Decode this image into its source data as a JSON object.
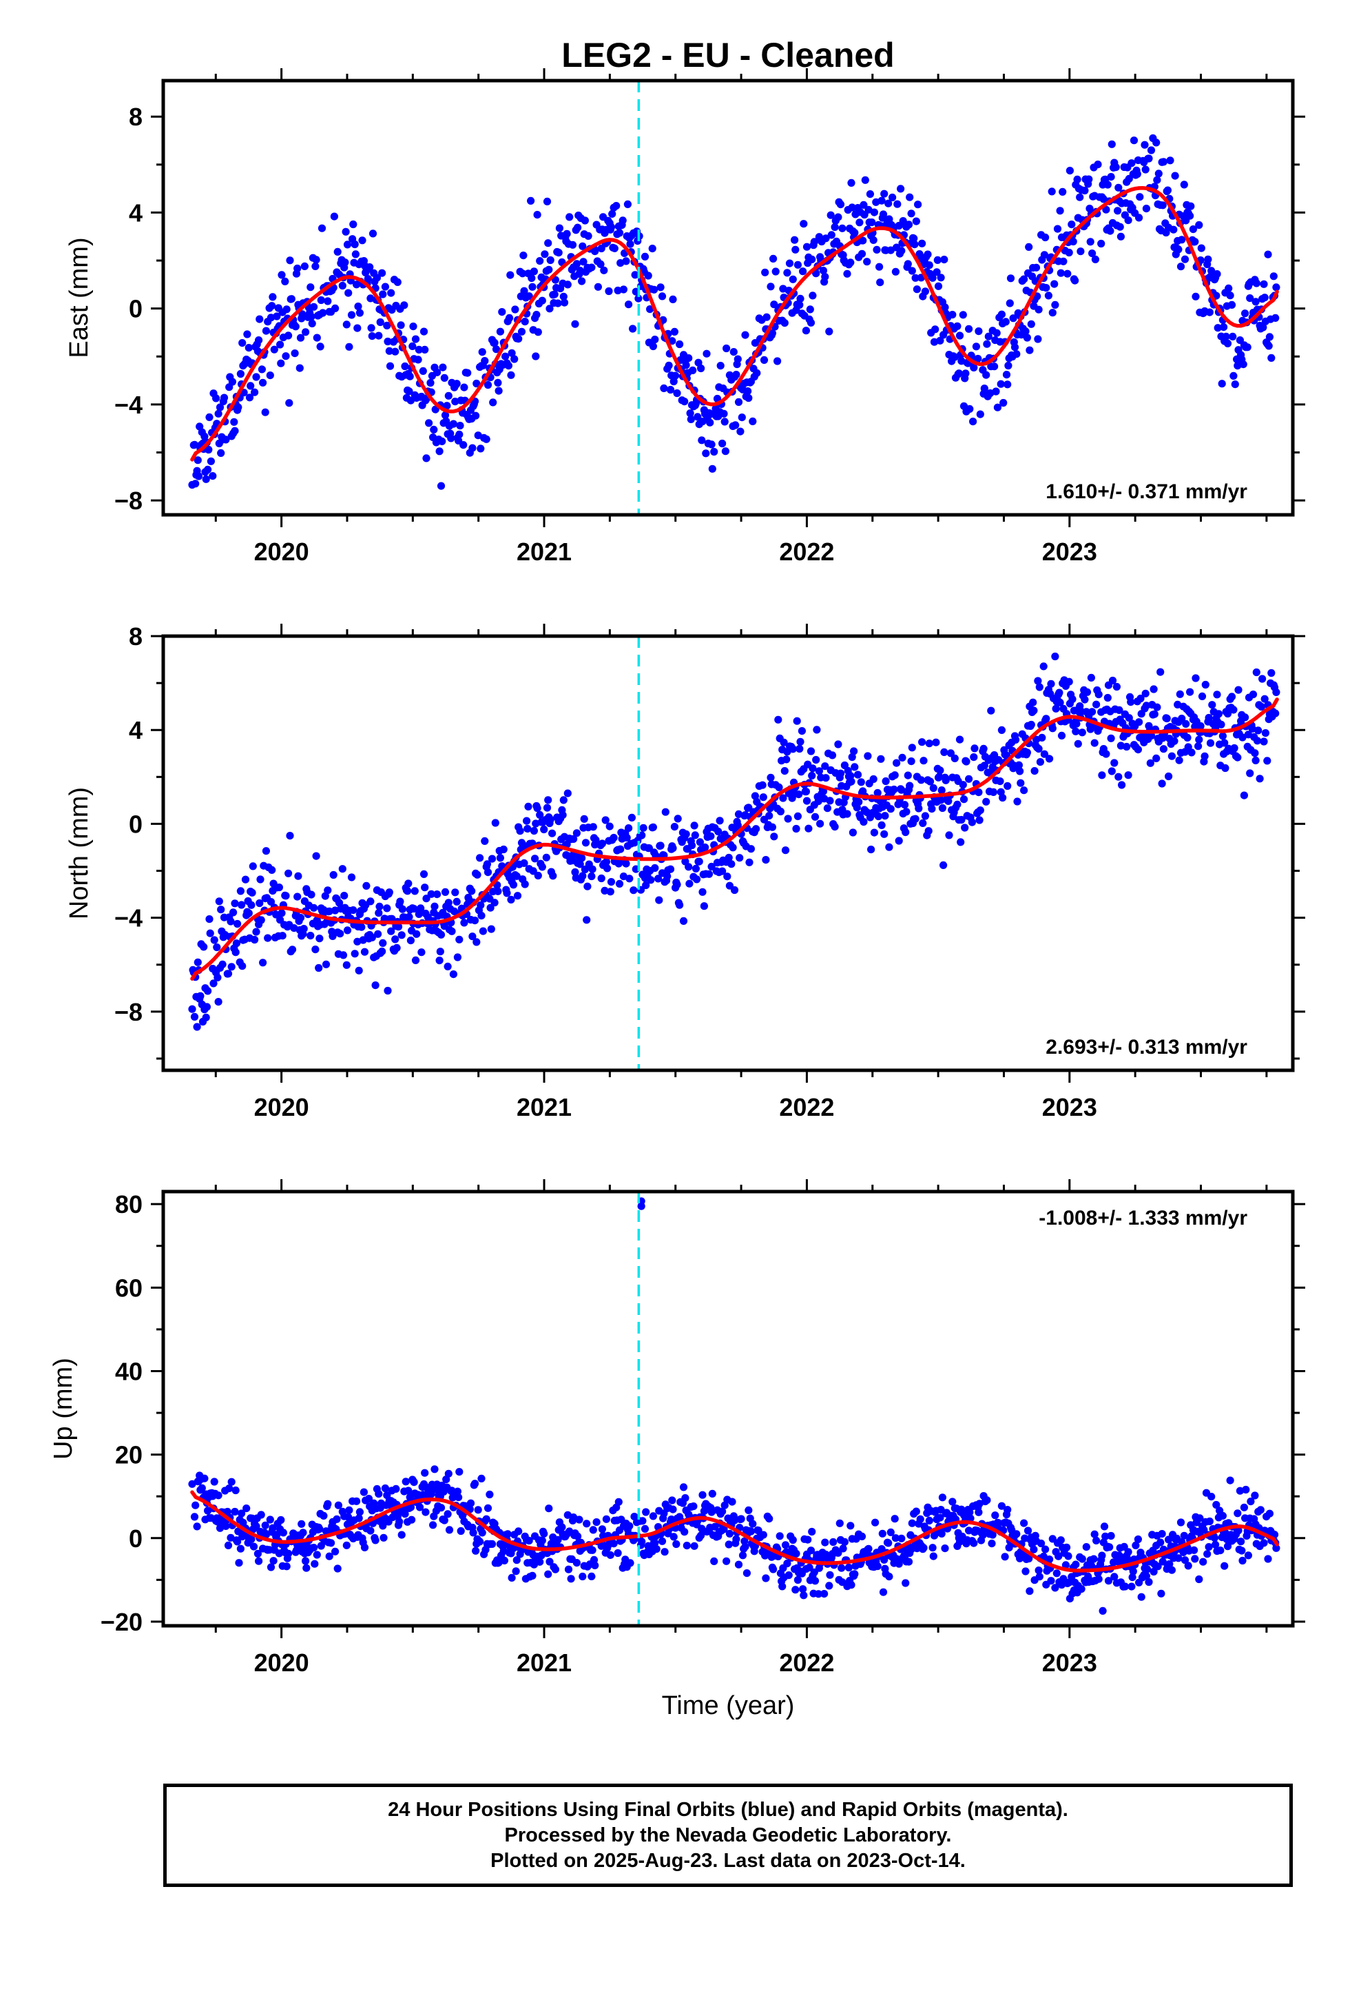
{
  "title": "LEG2  - EU - Cleaned",
  "colors": {
    "points": "#0000ff",
    "fit": "#ff0000",
    "event_line": "#00e5ee"
  },
  "x_ticks": [
    "2020",
    "2021",
    "2022",
    "2023"
  ],
  "xlabel_bottom": "Time (year)",
  "event_line_year": 2021.36,
  "footer": {
    "line1": "24 Hour Positions Using Final Orbits (blue) and Rapid Orbits (magenta).",
    "line2": "Processed by the Nevada Geodetic Laboratory.",
    "line3": "Plotted on 2025-Aug-23. Last data on 2023-Oct-14."
  },
  "chart_data": [
    {
      "type": "scatter",
      "name": "east",
      "ylabel": "East (mm)",
      "xlim": [
        2019.55,
        2023.85
      ],
      "ylim": [
        -8.6,
        9.5
      ],
      "yticks": [
        8,
        4,
        0,
        -4,
        -8
      ],
      "ytick_labels": [
        "8",
        "4",
        "0",
        "−4",
        "−8"
      ],
      "rate_text": "1.610+/- 0.371 mm/yr",
      "rate_position": "bottom-right",
      "trend": {
        "t0": 2019.66,
        "end": 2023.79,
        "y0": -6.2,
        "rate": 1.61
      },
      "fit": {
        "x": [
          2019.66,
          2019.75,
          2019.85,
          2019.95,
          2020.05,
          2020.15,
          2020.25,
          2020.3,
          2020.4,
          2020.5,
          2020.6,
          2020.65,
          2020.75,
          2020.85,
          2020.95,
          2021.05,
          2021.15,
          2021.25,
          2021.3,
          2021.36,
          2021.4,
          2021.5,
          2021.6,
          2021.65,
          2021.75,
          2021.85,
          2021.95,
          2022.05,
          2022.15,
          2022.25,
          2022.3,
          2022.4,
          2022.5,
          2022.6,
          2022.65,
          2022.75,
          2022.85,
          2022.95,
          2023.05,
          2023.15,
          2023.25,
          2023.3,
          2023.4,
          2023.5,
          2023.6,
          2023.65,
          2023.79
        ],
        "y": [
          -6.3,
          -5.4,
          -3.2,
          -1.4,
          -0.2,
          0.7,
          1.5,
          1.5,
          0.0,
          -2.6,
          -4.4,
          -4.6,
          -3.6,
          -1.4,
          0.4,
          1.6,
          2.4,
          3.0,
          3.1,
          1.9,
          0.5,
          -2.3,
          -4.2,
          -4.3,
          -3.1,
          -0.9,
          0.9,
          1.9,
          2.6,
          3.4,
          3.6,
          2.7,
          0.1,
          -2.3,
          -2.6,
          -1.9,
          0.4,
          2.4,
          3.6,
          4.5,
          5.1,
          5.2,
          4.4,
          1.4,
          -0.9,
          -1.1,
          0.7
        ]
      },
      "noise": 1.1,
      "seed": 11
    },
    {
      "type": "scatter",
      "name": "north",
      "ylabel": "North (mm)",
      "xlim": [
        2019.55,
        2023.85
      ],
      "ylim": [
        -10.5,
        8.0
      ],
      "yticks": [
        8,
        4,
        0,
        -4,
        -8
      ],
      "ytick_labels": [
        "8",
        "4",
        "0",
        "−4",
        "−8"
      ],
      "rate_text": "2.693+/- 0.313 mm/yr",
      "rate_position": "bottom-right",
      "trend": {
        "t0": 2019.66,
        "end": 2023.79,
        "y0": -6.6,
        "rate": 2.693
      },
      "fit": {
        "x": [
          2019.66,
          2019.75,
          2019.85,
          2019.95,
          2020.05,
          2020.15,
          2020.3,
          2020.5,
          2020.65,
          2020.75,
          2020.85,
          2020.95,
          2021.05,
          2021.15,
          2021.3,
          2021.5,
          2021.65,
          2021.75,
          2021.85,
          2021.95,
          2022.05,
          2022.15,
          2022.3,
          2022.5,
          2022.65,
          2022.75,
          2022.85,
          2022.95,
          2023.05,
          2023.15,
          2023.3,
          2023.5,
          2023.65,
          2023.79
        ],
        "y": [
          -6.6,
          -5.8,
          -4.3,
          -3.5,
          -3.6,
          -4.0,
          -4.2,
          -4.2,
          -4.2,
          -3.3,
          -1.9,
          -0.8,
          -0.9,
          -1.3,
          -1.5,
          -1.5,
          -1.2,
          -0.3,
          0.9,
          1.8,
          1.7,
          1.2,
          1.1,
          1.2,
          1.4,
          2.5,
          3.7,
          4.6,
          4.6,
          4.0,
          3.9,
          4.0,
          3.9,
          5.3
        ]
      },
      "noise": 1.0,
      "seed": 23
    },
    {
      "type": "scatter",
      "name": "up",
      "ylabel": "Up (mm)",
      "xlim": [
        2019.55,
        2023.85
      ],
      "ylim": [
        -21,
        83
      ],
      "yticks": [
        80,
        60,
        40,
        20,
        0,
        -20
      ],
      "ytick_labels": [
        "80",
        "60",
        "40",
        "20",
        "0",
        "−20"
      ],
      "rate_text": "-1.008+/- 1.333 mm/yr",
      "rate_position": "top-right",
      "trend": {
        "t0": 2019.66,
        "end": 2023.79,
        "y0": 6.0,
        "rate": -1.008
      },
      "fit": {
        "x": [
          2019.66,
          2019.75,
          2019.85,
          2019.95,
          2020.05,
          2020.15,
          2020.3,
          2020.45,
          2020.6,
          2020.7,
          2020.8,
          2020.9,
          2021.0,
          2021.15,
          2021.3,
          2021.36,
          2021.45,
          2021.55,
          2021.65,
          2021.75,
          2021.9,
          2022.0,
          2022.15,
          2022.3,
          2022.45,
          2022.55,
          2022.65,
          2022.75,
          2022.85,
          2022.95,
          2023.05,
          2023.2,
          2023.35,
          2023.5,
          2023.6,
          2023.7,
          2023.79
        ],
        "y": [
          11,
          7,
          2,
          -1,
          -1,
          0,
          3,
          8,
          10,
          7,
          1,
          -2,
          -3,
          -2,
          1,
          -0.5,
          2,
          5,
          5,
          1,
          -4,
          -6,
          -6,
          -4,
          1,
          4,
          4,
          1,
          -4,
          -7.5,
          -8,
          -7,
          -4,
          0,
          3,
          3,
          -1.5
        ]
      },
      "noise": 3.6,
      "seed": 37,
      "outliers": [
        {
          "x": 2021.37,
          "y": 79.5
        },
        {
          "x": 2021.37,
          "y": 80.7
        }
      ]
    }
  ]
}
